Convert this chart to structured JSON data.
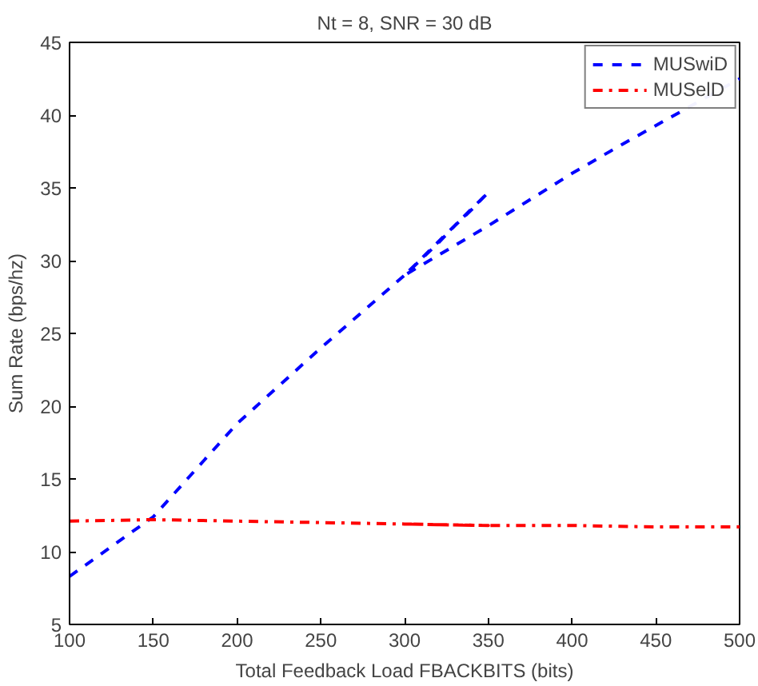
{
  "chart_data": {
    "type": "line",
    "title": "Nt = 8, SNR = 30 dB",
    "xlabel": "Total Feedback Load FBACKBITS (bits)",
    "ylabel": "Sum Rate (bps/hz)",
    "xlim": [
      100,
      500
    ],
    "xticks": [
      100,
      150,
      200,
      250,
      300,
      350,
      400,
      450,
      500
    ],
    "ylim": [
      5,
      45
    ],
    "yticks": [
      5,
      10,
      15,
      20,
      25,
      30,
      35,
      40,
      45
    ],
    "grid": false,
    "legend": "top right",
    "marker": "none",
    "series": [
      {
        "name": "MUSwiD",
        "color": "#0000ff",
        "line_style": "dashed",
        "x": [
          100,
          150,
          200,
          250,
          300,
          310,
          320,
          330,
          340,
          350,
          300,
          350,
          400,
          430,
          500
        ],
        "values": [
          8.3,
          12.4,
          18.8,
          24.0,
          29.0,
          30.1,
          31.2,
          32.4,
          33.5,
          34.7,
          29.0,
          32.4,
          36.0,
          38.0,
          42.5
        ]
      },
      {
        "name": "MUSelD",
        "color": "#ff0000",
        "line_style": "dashdot",
        "x": [
          100,
          150,
          200,
          250,
          300,
          350,
          300,
          350,
          400,
          450,
          500
        ],
        "values": [
          12.1,
          12.2,
          12.1,
          12.0,
          11.9,
          11.8,
          11.9,
          11.8,
          11.8,
          11.7,
          11.7
        ]
      }
    ]
  }
}
